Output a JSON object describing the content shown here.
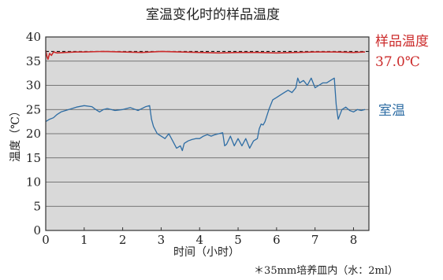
{
  "chart_data": {
    "type": "line",
    "title": "室温变化时的样品温度",
    "xlabel": "时间（小时）",
    "ylabel": "温度（℃）",
    "note": "＊35mm培养皿内（水：2ml）",
    "xlim": [
      0,
      8.4
    ],
    "ylim": [
      0,
      40
    ],
    "x_ticks": [
      "0",
      "1",
      "2",
      "3",
      "4",
      "5",
      "6",
      "7",
      "8"
    ],
    "y_ticks": [
      "0",
      "5",
      "10",
      "15",
      "20",
      "25",
      "30",
      "35",
      "40"
    ],
    "grid": "horizontal",
    "reference_line": {
      "y": 37.0,
      "style": "dashed",
      "color": "#111111"
    },
    "series": [
      {
        "name": "样品温度",
        "label_value": "37.0℃",
        "color": "#cc2b2b",
        "x": [
          0.0,
          0.03,
          0.06,
          0.1,
          0.15,
          0.2,
          0.3,
          0.5,
          0.8,
          1.0,
          1.5,
          2.0,
          2.5,
          3.0,
          3.5,
          4.0,
          4.5,
          5.0,
          5.5,
          6.0,
          6.5,
          7.0,
          7.5,
          8.0,
          8.3
        ],
        "values": [
          37.2,
          36.0,
          35.4,
          36.6,
          36.2,
          36.9,
          36.7,
          36.8,
          36.9,
          36.9,
          37.0,
          36.9,
          36.8,
          37.0,
          36.9,
          36.8,
          36.7,
          36.8,
          36.8,
          36.7,
          36.8,
          36.9,
          36.9,
          36.8,
          36.9
        ]
      },
      {
        "name": "室温",
        "color": "#2e6da4",
        "x": [
          0.0,
          0.1,
          0.2,
          0.3,
          0.4,
          0.6,
          0.8,
          1.0,
          1.2,
          1.3,
          1.4,
          1.5,
          1.6,
          1.8,
          2.0,
          2.2,
          2.4,
          2.6,
          2.7,
          2.75,
          2.8,
          2.9,
          3.0,
          3.1,
          3.2,
          3.3,
          3.4,
          3.5,
          3.55,
          3.6,
          3.7,
          3.8,
          3.9,
          4.0,
          4.1,
          4.2,
          4.3,
          4.4,
          4.5,
          4.6,
          4.65,
          4.7,
          4.8,
          4.9,
          5.0,
          5.1,
          5.2,
          5.3,
          5.4,
          5.5,
          5.55,
          5.6,
          5.65,
          5.7,
          5.8,
          5.9,
          6.0,
          6.1,
          6.2,
          6.3,
          6.4,
          6.5,
          6.55,
          6.6,
          6.7,
          6.8,
          6.9,
          7.0,
          7.1,
          7.2,
          7.3,
          7.4,
          7.5,
          7.55,
          7.6,
          7.7,
          7.8,
          7.9,
          8.0,
          8.1,
          8.2,
          8.3
        ],
        "values": [
          22.5,
          23.0,
          23.3,
          24.0,
          24.5,
          25.0,
          25.5,
          25.8,
          25.6,
          25.0,
          24.5,
          25.0,
          25.2,
          24.8,
          25.0,
          25.4,
          24.8,
          25.6,
          25.8,
          23.0,
          21.5,
          20.0,
          19.5,
          19.0,
          20.0,
          18.5,
          17.0,
          17.5,
          16.5,
          18.0,
          18.5,
          18.8,
          19.0,
          19.0,
          19.5,
          19.8,
          19.5,
          19.8,
          20.0,
          20.2,
          17.5,
          17.8,
          19.5,
          17.5,
          19.0,
          17.5,
          19.0,
          17.0,
          18.5,
          19.0,
          21.0,
          22.0,
          21.8,
          22.5,
          25.0,
          27.0,
          27.5,
          28.0,
          28.5,
          29.0,
          28.5,
          29.5,
          31.5,
          30.5,
          31.0,
          30.0,
          31.5,
          29.5,
          30.0,
          30.5,
          30.5,
          31.0,
          31.5,
          26.0,
          23.0,
          25.0,
          25.5,
          24.8,
          24.5,
          25.0,
          24.8,
          25.0
        ]
      }
    ]
  }
}
